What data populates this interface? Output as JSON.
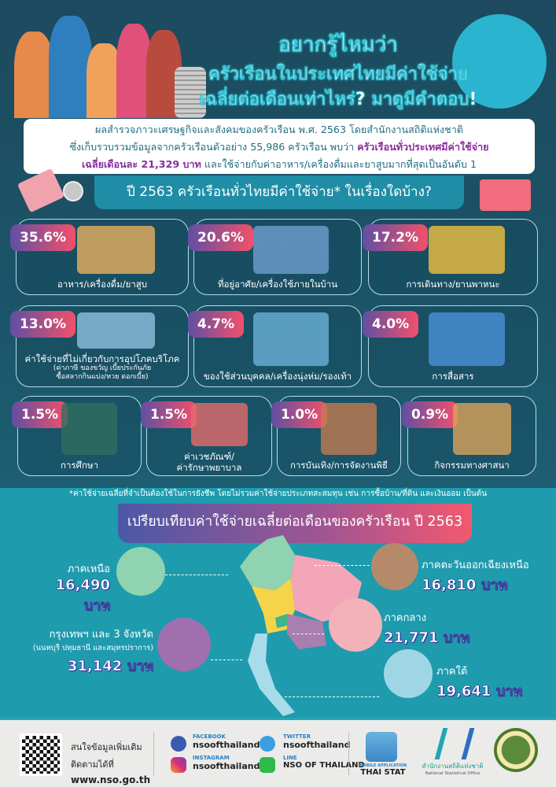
{
  "header": {
    "title_lines": [
      "อยากรู้ไหมว่า",
      "ครัวเรือนในประเทศไทยมีค่าใช้จ่าย",
      "เฉลี่ยต่อเดือนเท่าไหร่? มาดูมีคำตอบ!"
    ]
  },
  "intro": {
    "line1": "ผลสำรวจภาวะเศรษฐกิจและสังคมของครัวเรือน พ.ศ. 2563 โดยสำนักงานสถิติแห่งชาติ",
    "line2_a": "ซึ่งเก็บรวบรวมข้อมูลจากครัวเรือนตัวอย่าง 55,986 ครัวเรือน พบว่า ",
    "line2_hl": "ครัวเรือนทั่วประเทศมีค่าใช้จ่าย",
    "line3_hl": "เฉลี่ยเดือนละ 21,329 บาท",
    "line3_b": " และใช้จ่ายกับค่าอาหาร/เครื่องดื่มและยาสูบมากที่สุดเป็นอันดับ 1"
  },
  "question": "ปี 2563 ครัวเรือนทั่วไทยมีค่าใช้จ่าย* ในเรื่องใดบ้าง?",
  "categories": [
    {
      "pct": "35.6%",
      "label": "อาหาร/เครื่องดื่ม/ยาสูบ"
    },
    {
      "pct": "20.6%",
      "label": "ที่อยู่อาศัย/เครื่องใช้ภายในบ้าน"
    },
    {
      "pct": "17.2%",
      "label": "การเดินทาง/ยานพาหนะ"
    },
    {
      "pct": "13.0%",
      "label": "ค่าใช้จ่ายที่ไม่เกี่ยวกับการอุปโภคบริโภค",
      "sub1": "(ค่าภาษี ของขวัญ เบี้ยประกันภัย",
      "sub2": "ซื้อสลากกินแบ่ง/หวย ดอกเบี้ย)"
    },
    {
      "pct": "4.7%",
      "label": "ของใช้ส่วนบุคคล/เครื่องนุ่งห่ม/รองเท้า"
    },
    {
      "pct": "4.0%",
      "label": "การสื่อสาร"
    },
    {
      "pct": "1.5%",
      "label": "การศึกษา"
    },
    {
      "pct": "1.5%",
      "label": "ค่าเวชภัณฑ์/",
      "label2": "ค่ารักษาพยาบาล"
    },
    {
      "pct": "1.0%",
      "label": "การบันเทิง/การจัดงานพิธี"
    },
    {
      "pct": "0.9%",
      "label": "กิจกรรมทางศาสนา"
    }
  ],
  "footnote": "*ค่าใช้จ่ายเฉลี่ยที่จำเป็นต้องใช้ในการยังชีพ โดยไม่รวมค่าใช้จ่ายประเภทสะสมทุน เช่น การซื้อบ้าน/ที่ดิน และเงินออม เป็นต้น",
  "compare": {
    "title": "เปรียบเทียบค่าใช้จ่ายเฉลี่ยต่อเดือนของครัวเรือน ปี 2563",
    "regions": [
      {
        "name": "ภาคเหนือ",
        "value": "16,490 บาท",
        "color": "#8fd3b0"
      },
      {
        "name": "ภาคตะวันออกเฉียงเหนือ",
        "value": "16,810 บาท",
        "color": "#f2a6b8"
      },
      {
        "name": "กรุงเทพฯ และ 3 จังหวัด",
        "sub": "(นนทบุรี ปทุมธานี และสมุทรปราการ)",
        "value": "31,142 บาท",
        "color": "#f5d44a"
      },
      {
        "name": "ภาคกลาง",
        "value": "21,771 บาท",
        "color": "#a97fb0"
      },
      {
        "name": "ภาคใต้",
        "value": "19,641 บาท",
        "color": "#a9dcea"
      }
    ]
  },
  "footer": {
    "more_info": "สนใจข้อมูลเพิ่มเติม",
    "follow": "ติดตามได้ที่",
    "url": "www.nso.go.th",
    "social": [
      {
        "platform": "FACEBOOK",
        "handle": "nsoofthailand"
      },
      {
        "platform": "TWITTER",
        "handle": "nsoofthailand"
      },
      {
        "platform": "INSTAGRAM",
        "handle": "nsoofthailand"
      },
      {
        "platform": "LINE",
        "handle": "NSO OF THAILAND"
      }
    ],
    "app_label": "MOBILE APPLICATION",
    "app_name": "THAI STAT",
    "org_th": "สำนักงานสถิติแห่งชาติ",
    "org_en": "National Statistical Office"
  }
}
